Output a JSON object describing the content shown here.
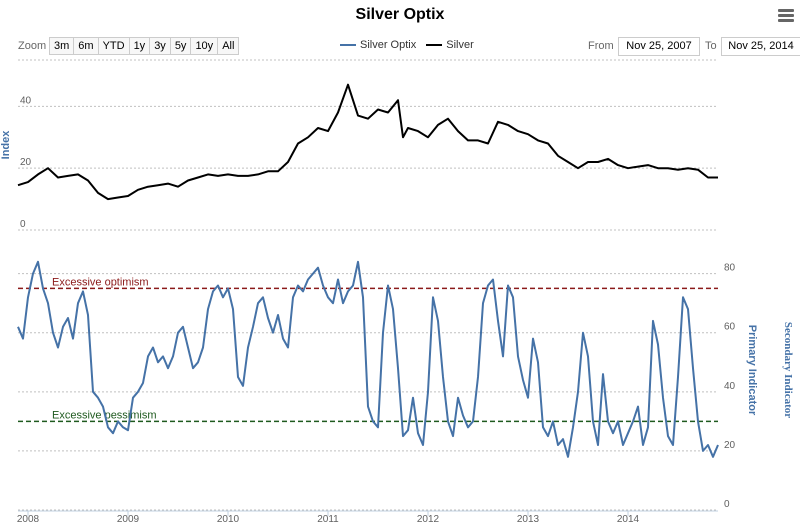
{
  "header": {
    "title": "Silver Optix"
  },
  "zoom": {
    "label": "Zoom",
    "buttons": [
      "3m",
      "6m",
      "YTD",
      "1y",
      "3y",
      "5y",
      "10y",
      "All"
    ]
  },
  "range": {
    "from_label": "From",
    "from_value": "Nov 25, 2007",
    "to_label": "To",
    "to_value": "Nov 25, 2014"
  },
  "colors": {
    "optix": "#4572a7",
    "silver": "#000000",
    "optimism": "#8b1a1a",
    "pessimism": "#1f5a1f",
    "grid": "#c0c0c0"
  },
  "chart_data": {
    "type": "line",
    "title": "Silver Optix",
    "legend": [
      "Silver Optix",
      "Silver"
    ],
    "x_labels": [
      "2008",
      "2009",
      "2010",
      "2011",
      "2012",
      "2013",
      "2014"
    ],
    "x_range": [
      2007.9,
      2014.9
    ],
    "upper_panel": {
      "ylabel": "Index",
      "yticks": [
        0,
        20,
        40
      ],
      "ylim": [
        0,
        55
      ],
      "series": {
        "name": "Silver",
        "x": [
          2007.9,
          2008.0,
          2008.1,
          2008.2,
          2008.3,
          2008.4,
          2008.5,
          2008.6,
          2008.7,
          2008.8,
          2008.9,
          2009.0,
          2009.1,
          2009.2,
          2009.3,
          2009.4,
          2009.5,
          2009.6,
          2009.7,
          2009.8,
          2009.9,
          2010.0,
          2010.1,
          2010.2,
          2010.3,
          2010.4,
          2010.5,
          2010.6,
          2010.7,
          2010.8,
          2010.9,
          2011.0,
          2011.1,
          2011.2,
          2011.3,
          2011.4,
          2011.5,
          2011.6,
          2011.7,
          2011.75,
          2011.8,
          2011.9,
          2012.0,
          2012.1,
          2012.2,
          2012.3,
          2012.4,
          2012.5,
          2012.6,
          2012.7,
          2012.8,
          2012.9,
          2013.0,
          2013.1,
          2013.2,
          2013.3,
          2013.4,
          2013.5,
          2013.6,
          2013.7,
          2013.8,
          2013.9,
          2014.0,
          2014.1,
          2014.2,
          2014.3,
          2014.4,
          2014.5,
          2014.6,
          2014.7,
          2014.8,
          2014.9
        ],
        "values": [
          14.5,
          15.5,
          18,
          20,
          17,
          17.5,
          18,
          16,
          12,
          10,
          10.5,
          11,
          13,
          14,
          14.5,
          15,
          14,
          16,
          17,
          18,
          17.5,
          18,
          17.5,
          17.5,
          18,
          19,
          19,
          22,
          28,
          30,
          33,
          32,
          38,
          47,
          37,
          36,
          39,
          38,
          42,
          30,
          33,
          32,
          30,
          34,
          36,
          32,
          29,
          29,
          28,
          35,
          34,
          32,
          31,
          29,
          28,
          24,
          22,
          20,
          22,
          22,
          23,
          21,
          20,
          20.5,
          21,
          20,
          20,
          19.5,
          20,
          19.5,
          17,
          17
        ]
      }
    },
    "lower_panel": {
      "ylabel_primary": "Primary Indicator",
      "ylabel_secondary": "Secondary Indicator",
      "yticks": [
        0,
        20,
        40,
        60,
        80
      ],
      "ylim": [
        0,
        88
      ],
      "series": {
        "name": "Silver Optix",
        "x": [
          2007.9,
          2007.95,
          2008.0,
          2008.05,
          2008.1,
          2008.15,
          2008.2,
          2008.25,
          2008.3,
          2008.35,
          2008.4,
          2008.45,
          2008.5,
          2008.55,
          2008.6,
          2008.65,
          2008.7,
          2008.75,
          2008.8,
          2008.85,
          2008.9,
          2008.95,
          2009.0,
          2009.05,
          2009.1,
          2009.15,
          2009.2,
          2009.25,
          2009.3,
          2009.35,
          2009.4,
          2009.45,
          2009.5,
          2009.55,
          2009.6,
          2009.65,
          2009.7,
          2009.75,
          2009.8,
          2009.85,
          2009.9,
          2009.95,
          2010.0,
          2010.05,
          2010.1,
          2010.15,
          2010.2,
          2010.25,
          2010.3,
          2010.35,
          2010.4,
          2010.45,
          2010.5,
          2010.55,
          2010.6,
          2010.65,
          2010.7,
          2010.75,
          2010.8,
          2010.85,
          2010.9,
          2010.95,
          2011.0,
          2011.05,
          2011.1,
          2011.15,
          2011.2,
          2011.25,
          2011.3,
          2011.35,
          2011.4,
          2011.45,
          2011.5,
          2011.55,
          2011.6,
          2011.65,
          2011.7,
          2011.75,
          2011.8,
          2011.85,
          2011.9,
          2011.95,
          2012.0,
          2012.05,
          2012.1,
          2012.15,
          2012.2,
          2012.25,
          2012.3,
          2012.35,
          2012.4,
          2012.45,
          2012.5,
          2012.55,
          2012.6,
          2012.65,
          2012.7,
          2012.75,
          2012.8,
          2012.85,
          2012.9,
          2012.95,
          2013.0,
          2013.05,
          2013.1,
          2013.15,
          2013.2,
          2013.25,
          2013.3,
          2013.35,
          2013.4,
          2013.45,
          2013.5,
          2013.55,
          2013.6,
          2013.65,
          2013.7,
          2013.75,
          2013.8,
          2013.85,
          2013.9,
          2013.95,
          2014.0,
          2014.05,
          2014.1,
          2014.15,
          2014.2,
          2014.25,
          2014.3,
          2014.35,
          2014.4,
          2014.45,
          2014.5,
          2014.55,
          2014.6,
          2014.65,
          2014.7,
          2014.75,
          2014.8,
          2014.85,
          2014.9
        ],
        "values": [
          62,
          58,
          72,
          80,
          84,
          75,
          70,
          60,
          55,
          62,
          65,
          58,
          70,
          74,
          66,
          40,
          38,
          35,
          28,
          26,
          30,
          28,
          27,
          38,
          40,
          43,
          52,
          55,
          50,
          52,
          48,
          52,
          60,
          62,
          55,
          48,
          50,
          55,
          68,
          74,
          76,
          72,
          75,
          68,
          45,
          42,
          55,
          62,
          70,
          72,
          65,
          60,
          66,
          58,
          55,
          72,
          76,
          74,
          78,
          80,
          82,
          76,
          72,
          70,
          78,
          70,
          74,
          76,
          84,
          72,
          35,
          30,
          28,
          60,
          76,
          68,
          48,
          25,
          27,
          38,
          26,
          22,
          40,
          72,
          64,
          45,
          30,
          25,
          38,
          32,
          28,
          30,
          45,
          70,
          76,
          78,
          64,
          52,
          76,
          72,
          52,
          44,
          38,
          58,
          50,
          28,
          25,
          30,
          22,
          24,
          18,
          28,
          40,
          60,
          52,
          30,
          22,
          46,
          30,
          26,
          30,
          22,
          26,
          30,
          35,
          22,
          28,
          64,
          56,
          38,
          25,
          22,
          45,
          72,
          68,
          48,
          30,
          20,
          22,
          18,
          22
        ]
      },
      "thresholds": [
        {
          "label": "Excessive optimism",
          "value": 75
        },
        {
          "label": "Excessive pessimism",
          "value": 30
        }
      ]
    }
  }
}
